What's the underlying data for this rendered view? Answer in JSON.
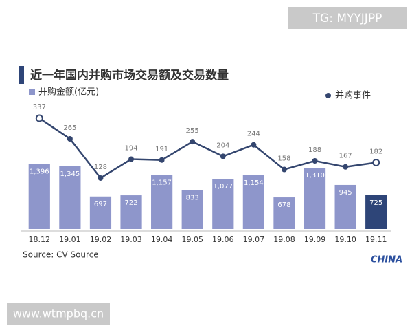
{
  "chart_data": {
    "type": "bar-line",
    "title": "近一年国内并购市场交易额及交易数量",
    "categories": [
      "18.12",
      "19.01",
      "19.02",
      "19.03",
      "19.04",
      "19.05",
      "19.06",
      "19.07",
      "19.08",
      "19.09",
      "19.10",
      "19.11"
    ],
    "series": [
      {
        "name": "并购金额(亿元)",
        "type": "bar",
        "color": "#8e96cb",
        "colors": [
          "#8e96cb",
          "#8e96cb",
          "#8e96cb",
          "#8e96cb",
          "#8e96cb",
          "#8e96cb",
          "#8e96cb",
          "#8e96cb",
          "#8e96cb",
          "#8e96cb",
          "#8e96cb",
          "#2e4578"
        ],
        "values": [
          1396,
          1345,
          697,
          722,
          1157,
          833,
          1077,
          1154,
          678,
          1310,
          945,
          725
        ],
        "value_labels": [
          "1,396",
          "1,345",
          "697",
          "722",
          "1,157",
          "833",
          "1,077",
          "1,154",
          "678",
          "1,310",
          "945",
          "725"
        ]
      },
      {
        "name": "并购事件",
        "type": "line",
        "axis": "y2",
        "color": "#34466f",
        "values": [
          337,
          265,
          128,
          194,
          191,
          255,
          204,
          244,
          158,
          188,
          167,
          182
        ]
      }
    ],
    "ylim": [
      0,
      2700
    ],
    "y2lim": [
      -50,
      390
    ],
    "source": "Source: CV Source",
    "logo": "CHINA",
    "watermarks": [
      "TG: MYYJJPP",
      "www.wtmpbq.cn"
    ]
  }
}
